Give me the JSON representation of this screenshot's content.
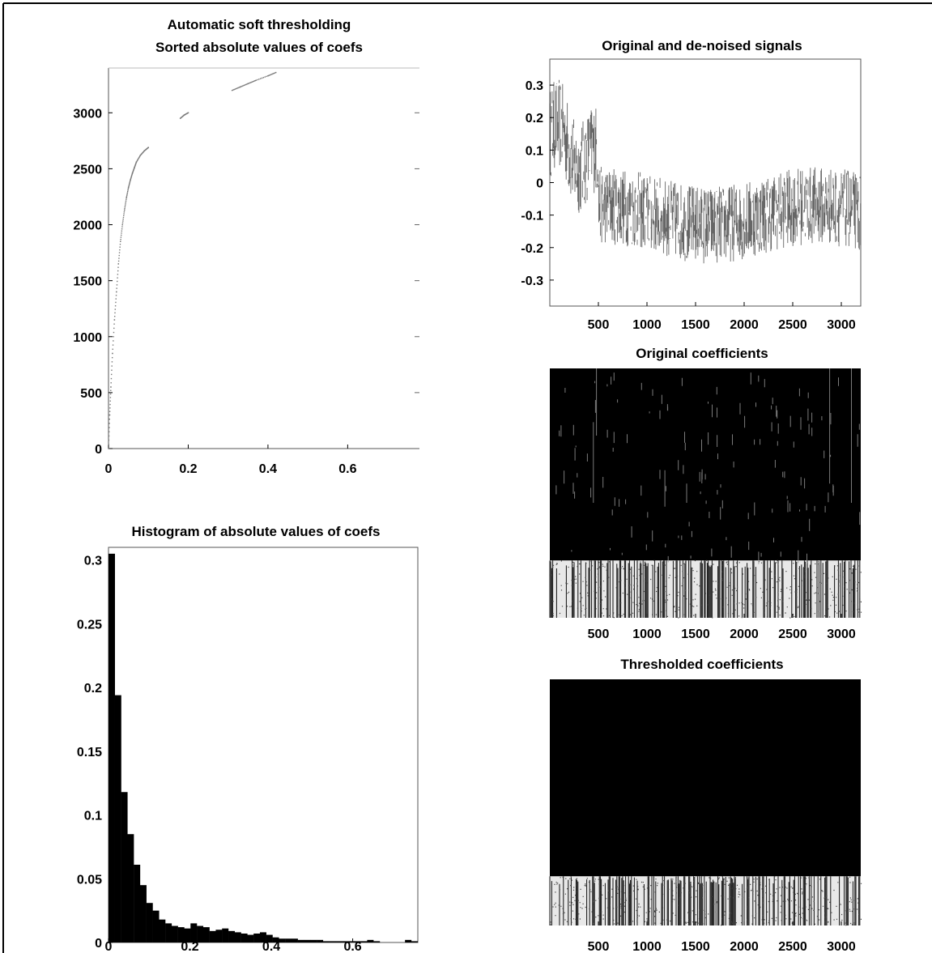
{
  "colors": {
    "ink": "#000000",
    "paper": "#ffffff",
    "plot_border": "#555555",
    "curve": "#777777"
  },
  "chart_data": [
    {
      "id": "sorted",
      "type": "scatter",
      "title": [
        "Automatic soft thresholding",
        "Sorted absolute values of coefs"
      ],
      "xlabel": "",
      "ylabel": "",
      "xlim": [
        0,
        0.78
      ],
      "ylim": [
        0,
        3400
      ],
      "xticks": [
        0,
        0.2,
        0.4,
        0.6
      ],
      "yticks": [
        0,
        500,
        1000,
        1500,
        2000,
        2500,
        3000
      ],
      "x": [
        0.0,
        0.003,
        0.006,
        0.01,
        0.015,
        0.02,
        0.025,
        0.03,
        0.035,
        0.04,
        0.045,
        0.05,
        0.055,
        0.06,
        0.065,
        0.07,
        0.08,
        0.09,
        0.1,
        0.18,
        0.19,
        0.2,
        0.31,
        0.33,
        0.35,
        0.37,
        0.4,
        0.42
      ],
      "y": [
        0,
        300,
        550,
        850,
        1150,
        1400,
        1650,
        1850,
        2000,
        2130,
        2240,
        2330,
        2400,
        2460,
        2510,
        2560,
        2620,
        2660,
        2690,
        2950,
        2980,
        3000,
        3200,
        3230,
        3260,
        3290,
        3330,
        3360
      ],
      "grid": false
    },
    {
      "id": "histogram",
      "type": "bar",
      "title": "Histogram of absolute values of coefs",
      "xlabel": "",
      "ylabel": "",
      "xlim": [
        0,
        0.76
      ],
      "ylim": [
        0,
        0.31
      ],
      "bin_width": 0.0155,
      "xticks": [
        0,
        0.2,
        0.4,
        0.6
      ],
      "yticks": [
        0,
        0.05,
        0.1,
        0.15,
        0.2,
        0.25,
        0.3
      ],
      "values": [
        0.305,
        0.194,
        0.118,
        0.085,
        0.061,
        0.045,
        0.031,
        0.025,
        0.018,
        0.015,
        0.013,
        0.012,
        0.011,
        0.015,
        0.013,
        0.012,
        0.009,
        0.01,
        0.011,
        0.009,
        0.008,
        0.007,
        0.006,
        0.007,
        0.008,
        0.006,
        0.004,
        0.003,
        0.003,
        0.003,
        0.002,
        0.002,
        0.002,
        0.002,
        0.001,
        0.001,
        0.001,
        0.001,
        0.001,
        0.001,
        0.001,
        0.002,
        0.001,
        0.0,
        0.0,
        0.0,
        0.0,
        0.002,
        0.001
      ],
      "grid": false
    },
    {
      "id": "signal",
      "type": "line",
      "title": "Original and de-noised signals",
      "xlabel": "",
      "ylabel": "",
      "xlim": [
        0,
        3200
      ],
      "ylim": [
        -0.38,
        0.38
      ],
      "xticks": [
        500,
        1000,
        1500,
        2000,
        2500,
        3000
      ],
      "yticks": [
        -0.3,
        -0.2,
        -0.1,
        0,
        0.1,
        0.2,
        0.3
      ],
      "samples": 3200,
      "grid": false
    },
    {
      "id": "orig-coefs",
      "type": "heatmap",
      "title": "Original coefficients",
      "xlabel": "",
      "ylabel": "",
      "xlim": [
        0,
        3200
      ],
      "xticks": [
        500,
        1000,
        1500,
        2000,
        2500,
        3000
      ],
      "grid": false
    },
    {
      "id": "thresh-coefs",
      "type": "heatmap",
      "title": "Thresholded coefficients",
      "xlabel": "",
      "ylabel": "",
      "xlim": [
        0,
        3200
      ],
      "xticks": [
        500,
        1000,
        1500,
        2000,
        2500,
        3000
      ],
      "grid": false
    }
  ]
}
